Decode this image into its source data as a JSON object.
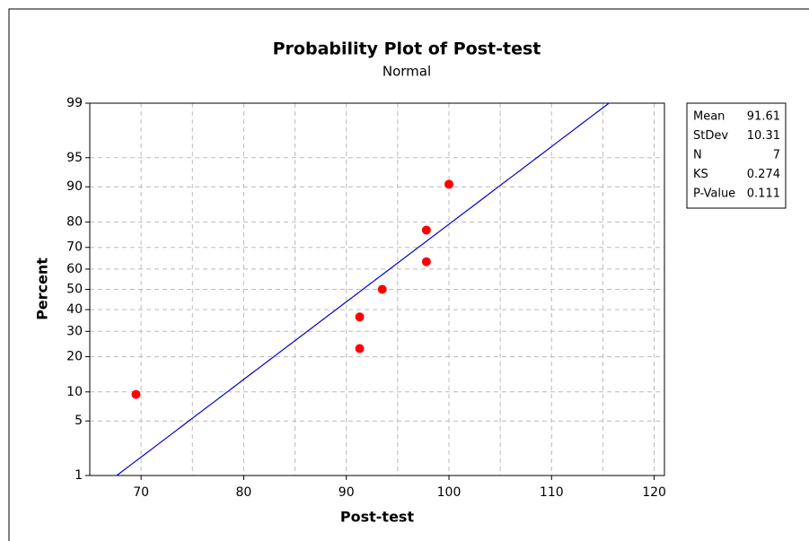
{
  "chart_data": {
    "type": "scatter",
    "title": "Probability Plot of Post-test",
    "subtitle": "Normal",
    "xlabel": "Post-test",
    "ylabel": "Percent",
    "x": [
      69.5,
      91.3,
      91.3,
      93.5,
      97.8,
      97.8,
      100
    ],
    "values": [
      9.46,
      22.97,
      36.49,
      50,
      63.51,
      77.03,
      90.54
    ],
    "color": "#ff0000",
    "line_color": "#0000cc",
    "xlim": [
      65,
      121
    ],
    "xticks": [
      70,
      80,
      90,
      100,
      110,
      120
    ],
    "xminor": [
      65,
      75,
      85,
      95,
      105,
      115
    ],
    "ylim": [
      1,
      99
    ],
    "yticks": [
      1,
      5,
      10,
      20,
      30,
      40,
      50,
      60,
      70,
      80,
      90,
      95,
      99
    ],
    "yscale": "normal-probability",
    "grid": true,
    "stats": [
      {
        "label": "Mean",
        "value": 91.61
      },
      {
        "label": "StDev",
        "value": 10.31
      },
      {
        "label": "N",
        "value": 7
      },
      {
        "label": "KS",
        "value": 0.274
      },
      {
        "label": "P-Value",
        "value": 0.111
      }
    ]
  }
}
